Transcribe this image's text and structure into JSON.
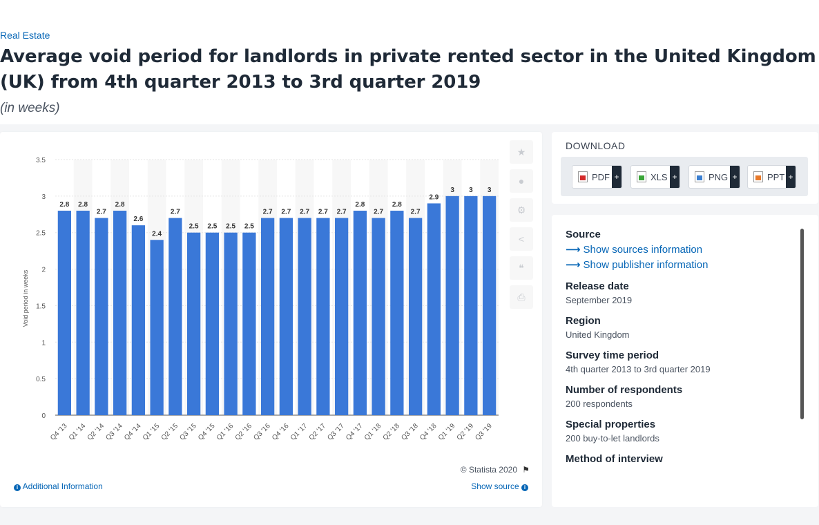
{
  "breadcrumb": "Real Estate",
  "title": "Average void period for landlords in private rented sector in the United Kingdom (UK) from 4th quarter 2013 to 3rd quarter 2019",
  "subtitle": "(in weeks)",
  "chart_data": {
    "type": "bar",
    "categories": [
      "Q4 '13",
      "Q1 '14",
      "Q2 '14",
      "Q3 '14",
      "Q4 '14",
      "Q1 '15",
      "Q2 '15",
      "Q3 '15",
      "Q4 '15",
      "Q1 '16",
      "Q2 '16",
      "Q3 '16",
      "Q4 '16",
      "Q1 '17",
      "Q2 '17",
      "Q3 '17",
      "Q4 '17",
      "Q1 '18",
      "Q2 '18",
      "Q3 '18",
      "Q4 '18",
      "Q1 '19",
      "Q2 '19",
      "Q3 '19"
    ],
    "values": [
      2.8,
      2.8,
      2.7,
      2.8,
      2.6,
      2.4,
      2.7,
      2.5,
      2.5,
      2.5,
      2.5,
      2.7,
      2.7,
      2.7,
      2.7,
      2.7,
      2.8,
      2.7,
      2.8,
      2.7,
      2.9,
      3,
      3,
      3
    ],
    "value_labels": [
      "2.8",
      "2.8",
      "2.7",
      "2.8",
      "2.6",
      "2.4",
      "2.7",
      "2.5",
      "2.5",
      "2.5",
      "2.5",
      "2.7",
      "2.7",
      "2.7",
      "2.7",
      "2.7",
      "2.8",
      "2.7",
      "2.8",
      "2.7",
      "2.9",
      "3",
      "3",
      "3"
    ],
    "yticks": [
      "0",
      "0.5",
      "1",
      "1.5",
      "2",
      "2.5",
      "3",
      "3.5"
    ],
    "ylim": [
      0,
      3.5
    ],
    "ylabel": "Void period in weeks",
    "xlabel": "",
    "bar_color": "#3a78d8",
    "grid": true
  },
  "chart_footer": {
    "copyright": "© Statista 2020",
    "additional_info": "Additional Information",
    "show_source": "Show source"
  },
  "tools": [
    "star-icon",
    "bell-icon",
    "gear-icon",
    "share-icon",
    "quote-icon",
    "print-icon"
  ],
  "download": {
    "title": "DOWNLOAD",
    "buttons": [
      {
        "label": "PDF"
      },
      {
        "label": "XLS"
      },
      {
        "label": "PNG"
      },
      {
        "label": "PPT"
      }
    ],
    "plus": "+"
  },
  "info": {
    "source_label": "Source",
    "show_sources": "Show sources information",
    "show_publisher": "Show publisher information",
    "release_label": "Release date",
    "release_value": "September 2019",
    "region_label": "Region",
    "region_value": "United Kingdom",
    "survey_label": "Survey time period",
    "survey_value": "4th quarter 2013 to 3rd quarter 2019",
    "respondents_label": "Number of respondents",
    "respondents_value": "200 respondents",
    "special_label": "Special properties",
    "special_value": "200 buy-to-let landlords",
    "method_label": "Method of interview"
  }
}
